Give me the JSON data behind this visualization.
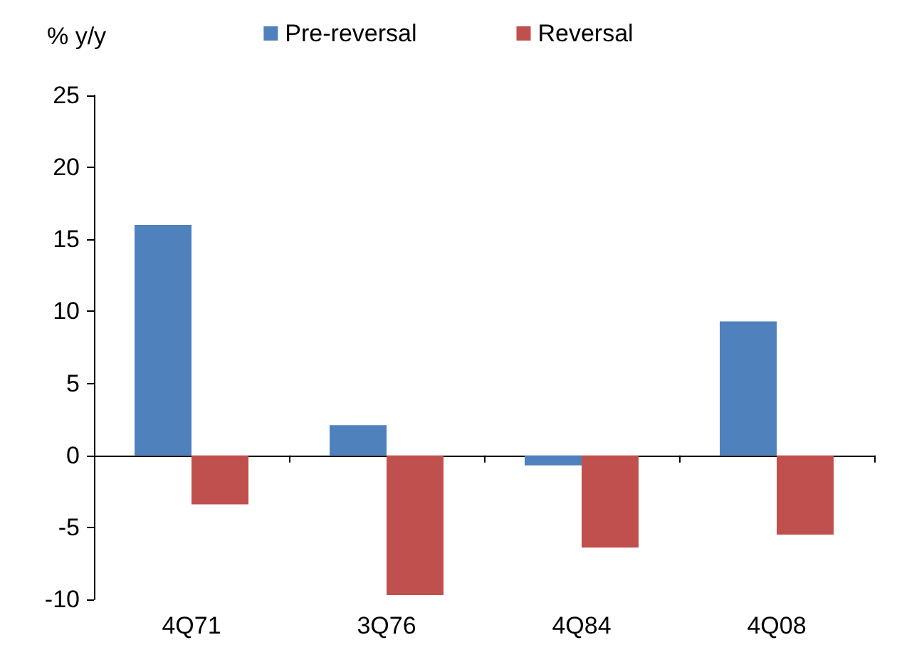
{
  "chart_data": {
    "type": "bar",
    "ylabel": "% y/y",
    "categories": [
      "4Q71",
      "3Q76",
      "4Q84",
      "4Q08"
    ],
    "series": [
      {
        "name": "Pre-reversal",
        "color": "#4f81bd",
        "values": [
          16,
          2.1,
          -0.7,
          9.3
        ]
      },
      {
        "name": "Reversal",
        "color": "#c0504d",
        "values": [
          -3.4,
          -9.7,
          -6.4,
          -5.5
        ]
      }
    ],
    "ylim": [
      -10,
      25
    ],
    "yticks": [
      -10,
      -5,
      0,
      5,
      10,
      15,
      20,
      25
    ],
    "legend": "top"
  }
}
